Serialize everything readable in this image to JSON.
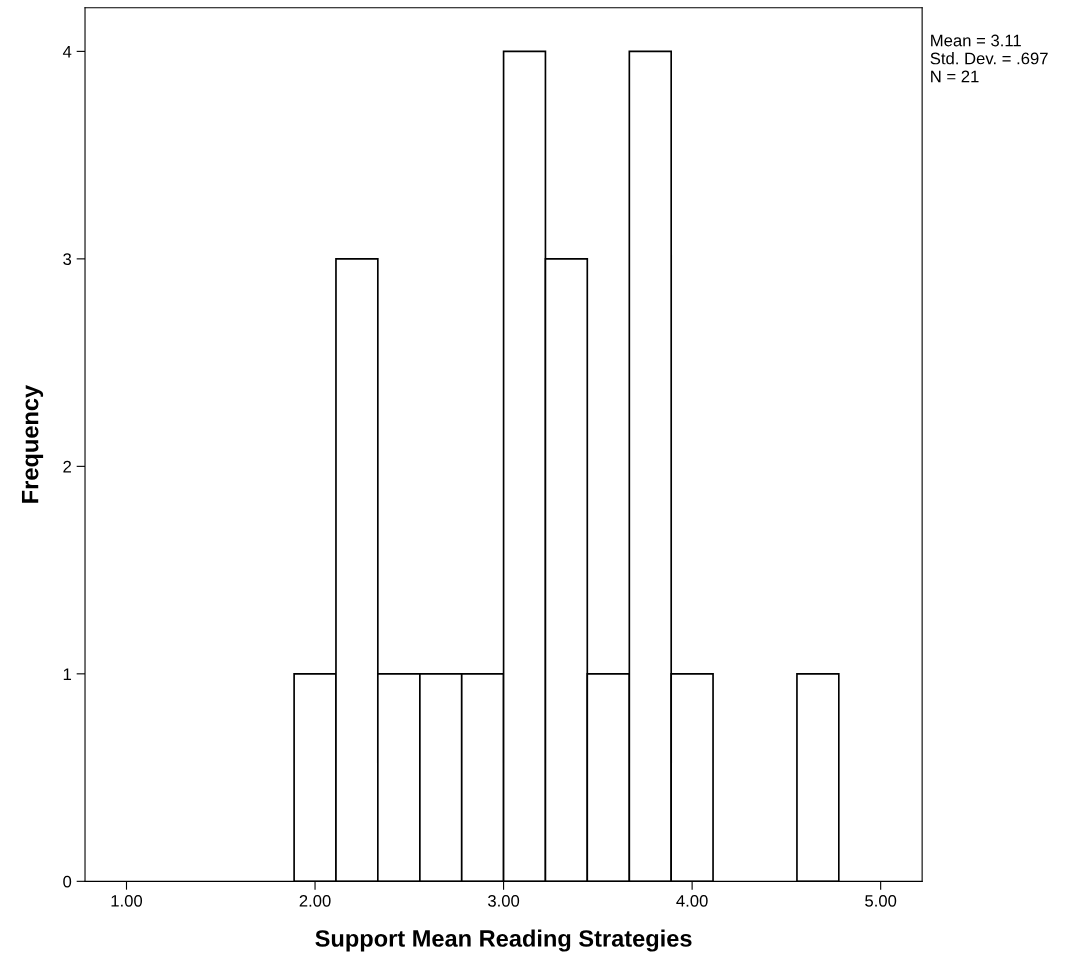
{
  "chart_data": {
    "type": "histogram",
    "xlabel": "Support Mean Reading Strategies",
    "ylabel": "Frequency",
    "bins": [
      1.889,
      2.111,
      2.333,
      2.556,
      2.778,
      3.0,
      3.222,
      3.444,
      3.667,
      3.889,
      4.111,
      4.333,
      4.556,
      4.778
    ],
    "values": [
      1,
      3,
      1,
      1,
      1,
      4,
      3,
      1,
      4,
      1,
      0,
      0,
      1
    ],
    "color": "#ffffff",
    "xlim": [
      0.78,
      5.22
    ],
    "xticks": [
      {
        "value": 1,
        "label": "1.00"
      },
      {
        "value": 2,
        "label": "2.00"
      },
      {
        "value": 3,
        "label": "3.00"
      },
      {
        "value": 4,
        "label": "4.00"
      },
      {
        "value": 5,
        "label": "5.00"
      }
    ],
    "ylim": [
      0,
      4.21
    ],
    "yticks": [
      0,
      1,
      2,
      3,
      4
    ],
    "annotations": [
      "Mean = 3.11\nStd. Dev. = .697\nN = 21"
    ],
    "grid": false,
    "legend": false
  }
}
